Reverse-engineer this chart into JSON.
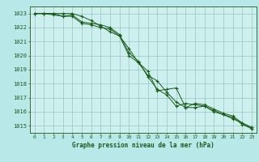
{
  "x": [
    0,
    1,
    2,
    3,
    4,
    5,
    6,
    7,
    8,
    9,
    10,
    11,
    12,
    13,
    14,
    15,
    16,
    17,
    18,
    19,
    20,
    21,
    22,
    23
  ],
  "line1": [
    1023,
    1023,
    1023,
    1022.8,
    1022.8,
    1022.3,
    1022.2,
    1022.0,
    1021.9,
    1021.4,
    1020.5,
    1019.5,
    1018.6,
    1018.2,
    1017.4,
    1016.7,
    1016.3,
    1016.3,
    1016.4,
    1016.1,
    1015.8,
    1015.5,
    1015.2,
    1014.8
  ],
  "line2": [
    1023,
    1023,
    1022.9,
    1022.8,
    1022.9,
    1022.4,
    1022.3,
    1022.2,
    1022.0,
    1021.5,
    1020.2,
    1019.6,
    1018.5,
    1017.6,
    1017.2,
    1016.4,
    1016.6,
    1016.5,
    1016.4,
    1016.0,
    1015.8,
    1015.6,
    1015.1,
    1014.8
  ],
  "line3": [
    1023,
    1023,
    1023,
    1023,
    1023,
    1022.8,
    1022.5,
    1022.1,
    1021.7,
    1021.4,
    1020.0,
    1019.5,
    1018.9,
    1017.5,
    1017.6,
    1017.7,
    1016.3,
    1016.6,
    1016.5,
    1016.2,
    1015.9,
    1015.7,
    1015.2,
    1014.9
  ],
  "ylim_min": 1014.5,
  "ylim_max": 1023.5,
  "yticks": [
    1015,
    1016,
    1017,
    1018,
    1019,
    1020,
    1021,
    1022,
    1023
  ],
  "xticks": [
    0,
    1,
    2,
    3,
    4,
    5,
    6,
    7,
    8,
    9,
    10,
    11,
    12,
    13,
    14,
    15,
    16,
    17,
    18,
    19,
    20,
    21,
    22,
    23
  ],
  "xlabel": "Graphe pression niveau de la mer (hPa)",
  "line_color": "#1a5c1a",
  "marker_color": "#1a5c1a",
  "bg_color": "#b8e8e8",
  "grid_color": "#88bbbb",
  "plot_bg": "#cdf0ee"
}
